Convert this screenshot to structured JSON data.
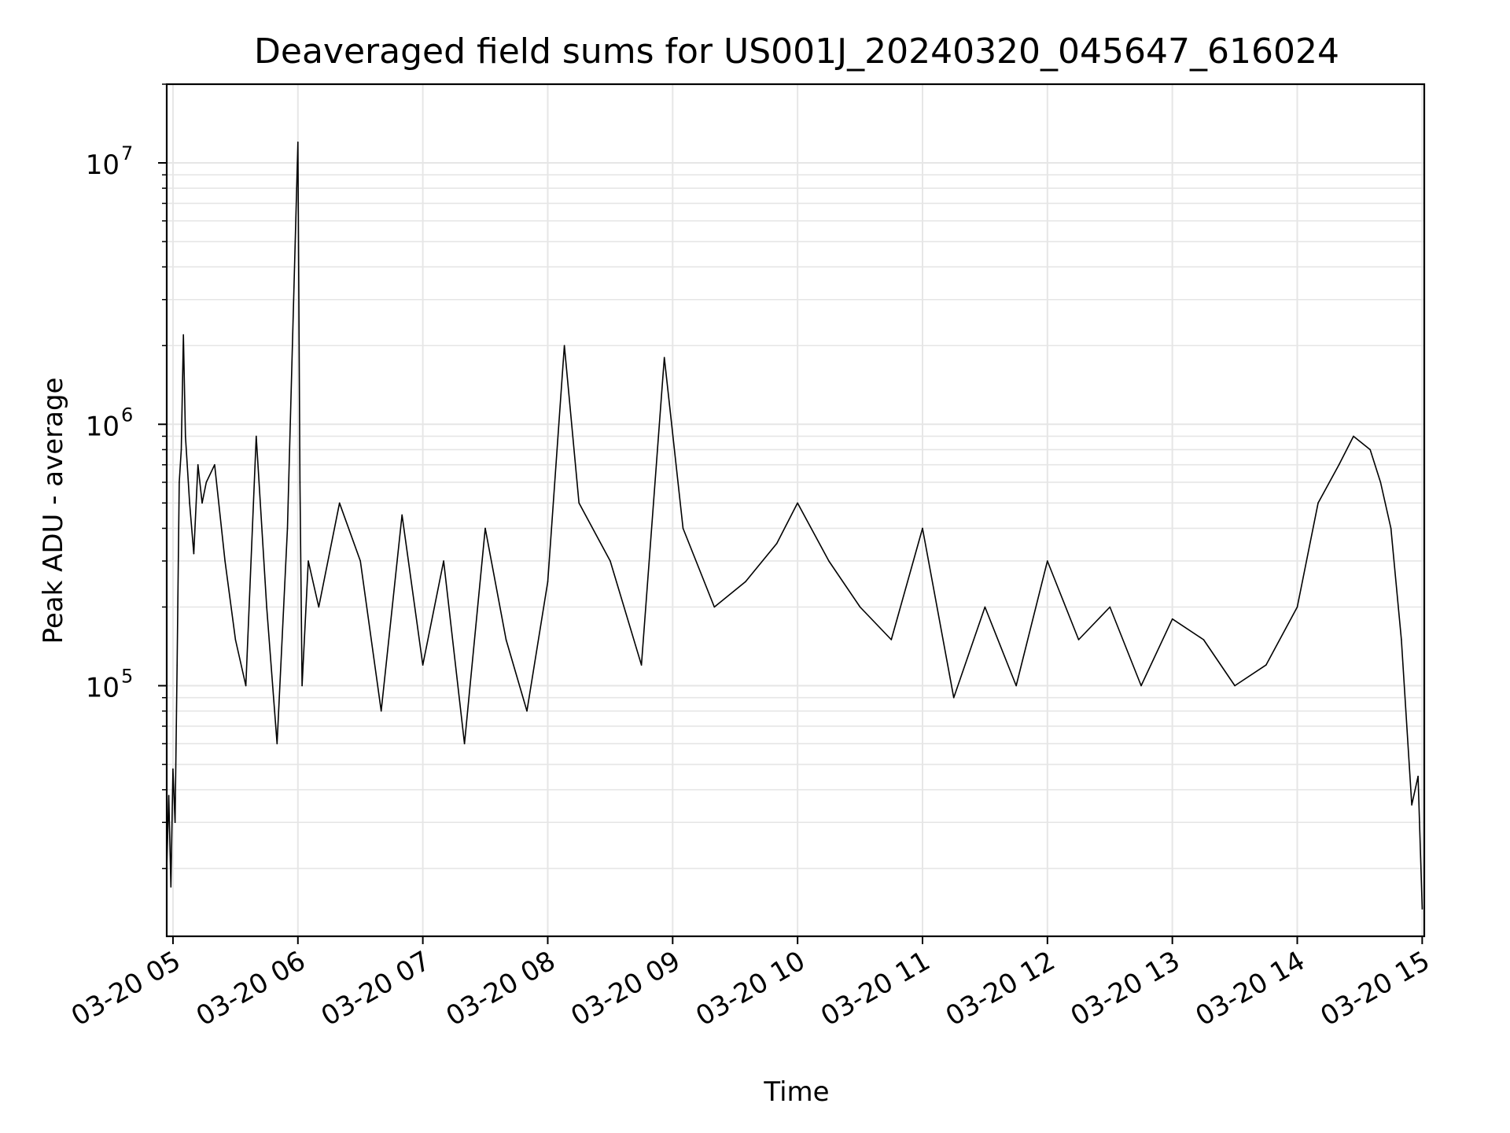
{
  "chart_data": {
    "type": "line",
    "title": "Deaveraged field sums for US001J_20240320_045647_616024",
    "xlabel": "Time",
    "ylabel": "Peak ADU - average",
    "yscale": "log",
    "ylim": [
      11000,
      20000000
    ],
    "xlim": [
      "03-20 04:57",
      "03-20 15:01"
    ],
    "grid": true,
    "line_color": "#000000",
    "grid_color": "#e6e6e6",
    "x_tick_labels": [
      "03-20 05",
      "03-20 06",
      "03-20 07",
      "03-20 08",
      "03-20 09",
      "03-20 10",
      "03-20 11",
      "03-20 12",
      "03-20 13",
      "03-20 14",
      "03-20 15"
    ],
    "y_ticks": [
      {
        "base": "10",
        "exp": "5",
        "value": 100000
      },
      {
        "base": "10",
        "exp": "6",
        "value": 1000000
      },
      {
        "base": "10",
        "exp": "7",
        "value": 10000000
      }
    ],
    "series": [
      {
        "note_visible": false,
        "x": [
          "03-20 04:57",
          "03-20 04:58",
          "03-20 04:59",
          "03-20 05:00",
          "03-20 05:01",
          "03-20 05:02",
          "03-20 05:03",
          "03-20 05:04",
          "03-20 05:05",
          "03-20 05:06",
          "03-20 05:08",
          "03-20 05:10",
          "03-20 05:12",
          "03-20 05:14",
          "03-20 05:16",
          "03-20 05:20",
          "03-20 05:25",
          "03-20 05:30",
          "03-20 05:35",
          "03-20 05:40",
          "03-20 05:45",
          "03-20 05:50",
          "03-20 05:55",
          "03-20 06:00",
          "03-20 06:01",
          "03-20 06:02",
          "03-20 06:05",
          "03-20 06:10",
          "03-20 06:20",
          "03-20 06:30",
          "03-20 06:40",
          "03-20 06:50",
          "03-20 07:00",
          "03-20 07:10",
          "03-20 07:20",
          "03-20 07:30",
          "03-20 07:40",
          "03-20 07:50",
          "03-20 08:00",
          "03-20 08:08",
          "03-20 08:15",
          "03-20 08:30",
          "03-20 08:45",
          "03-20 08:56",
          "03-20 09:05",
          "03-20 09:20",
          "03-20 09:35",
          "03-20 09:50",
          "03-20 10:00",
          "03-20 10:15",
          "03-20 10:30",
          "03-20 10:45",
          "03-20 11:00",
          "03-20 11:15",
          "03-20 11:30",
          "03-20 11:45",
          "03-20 12:00",
          "03-20 12:15",
          "03-20 12:30",
          "03-20 12:45",
          "03-20 13:00",
          "03-20 13:15",
          "03-20 13:30",
          "03-20 13:45",
          "03-20 14:00",
          "03-20 14:10",
          "03-20 14:20",
          "03-20 14:27",
          "03-20 14:35",
          "03-20 14:40",
          "03-20 14:45",
          "03-20 14:50",
          "03-20 14:55",
          "03-20 14:58",
          "03-20 15:00"
        ],
        "y": [
          20000,
          38000,
          17000,
          48000,
          30000,
          120000,
          600000,
          800000,
          2200000,
          900000,
          500000,
          320000,
          700000,
          500000,
          600000,
          700000,
          300000,
          150000,
          100000,
          900000,
          200000,
          60000,
          400000,
          12000000,
          600000,
          100000,
          300000,
          200000,
          500000,
          300000,
          80000,
          450000,
          120000,
          300000,
          60000,
          400000,
          150000,
          80000,
          250000,
          2000000,
          500000,
          300000,
          120000,
          1800000,
          400000,
          200000,
          250000,
          350000,
          500000,
          300000,
          200000,
          150000,
          400000,
          90000,
          200000,
          100000,
          300000,
          150000,
          200000,
          100000,
          180000,
          150000,
          100000,
          120000,
          200000,
          500000,
          700000,
          900000,
          800000,
          600000,
          400000,
          150000,
          35000,
          45000,
          14000
        ]
      }
    ]
  }
}
